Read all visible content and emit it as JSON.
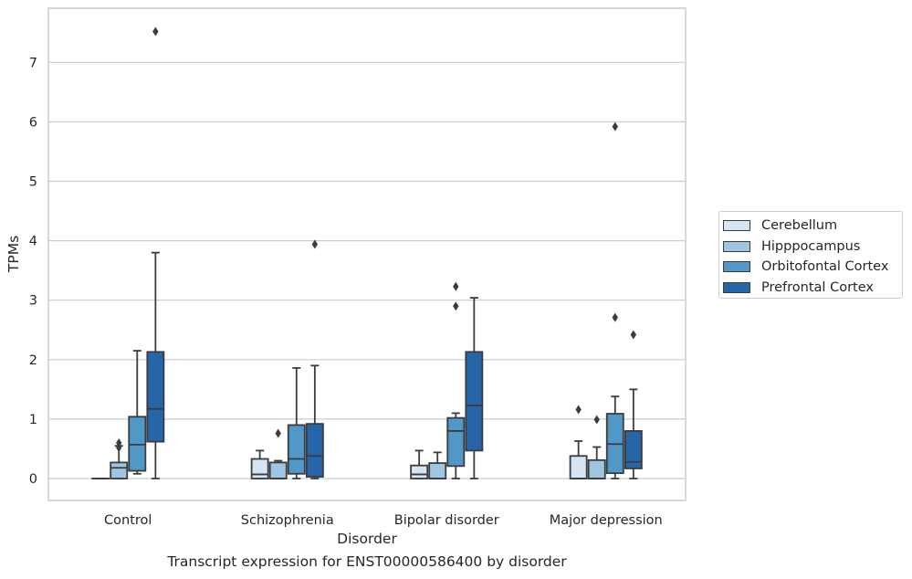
{
  "chart_data": {
    "type": "box",
    "title": "",
    "xlabel": "Disorder",
    "ylabel": "TPMs",
    "caption": "Transcript expression for ENST00000586400 by disorder",
    "categories": [
      "Control",
      "Schizophrenia",
      "Bipolar disorder",
      "Major depression"
    ],
    "ylim": [
      -0.35,
      7.9
    ],
    "yticks": [
      "0",
      "1",
      "2",
      "3",
      "4",
      "5",
      "6",
      "7"
    ],
    "grid": "y",
    "legend_position": "right",
    "series": [
      {
        "name": "Cerebellum",
        "color": "#d6e5f4",
        "boxes": [
          {
            "min": 0,
            "q1": 0,
            "median": 0,
            "q3": 0,
            "max": 0,
            "outliers": []
          },
          {
            "min": 0,
            "q1": 0,
            "median": 0.07,
            "q3": 0.33,
            "max": 0.47,
            "outliers": []
          },
          {
            "min": 0,
            "q1": 0,
            "median": 0.07,
            "q3": 0.22,
            "max": 0.47,
            "outliers": []
          },
          {
            "min": 0,
            "q1": 0,
            "median": 0,
            "q3": 0.38,
            "max": 0.63,
            "outliers": [
              1.16
            ]
          }
        ]
      },
      {
        "name": "Hipppocampus",
        "color": "#9dc7e0",
        "boxes": [
          {
            "min": 0,
            "q1": 0,
            "median": 0.18,
            "q3": 0.27,
            "max": 0.55,
            "outliers": [
              0.52,
              0.6
            ]
          },
          {
            "min": 0,
            "q1": 0,
            "median": 0,
            "q3": 0.27,
            "max": 0.3,
            "outliers": [
              0.76
            ]
          },
          {
            "min": 0,
            "q1": 0,
            "median": 0,
            "q3": 0.26,
            "max": 0.44,
            "outliers": []
          },
          {
            "min": 0,
            "q1": 0,
            "median": 0,
            "q3": 0.31,
            "max": 0.53,
            "outliers": [
              0.99
            ]
          }
        ]
      },
      {
        "name": "Orbitofontal Cortex",
        "color": "#5197c8",
        "boxes": [
          {
            "min": 0.08,
            "q1": 0.13,
            "median": 0.57,
            "q3": 1.04,
            "max": 2.15,
            "outliers": []
          },
          {
            "min": 0,
            "q1": 0.08,
            "median": 0.33,
            "q3": 0.9,
            "max": 1.86,
            "outliers": []
          },
          {
            "min": 0,
            "q1": 0.21,
            "median": 0.8,
            "q3": 1.02,
            "max": 1.1,
            "outliers": [
              2.9,
              3.23
            ]
          },
          {
            "min": 0,
            "q1": 0.09,
            "median": 0.58,
            "q3": 1.09,
            "max": 1.38,
            "outliers": [
              2.71,
              5.92
            ]
          }
        ]
      },
      {
        "name": "Prefrontal Cortex",
        "color": "#2565a8",
        "boxes": [
          {
            "min": 0,
            "q1": 0.62,
            "median": 1.17,
            "q3": 2.13,
            "max": 3.8,
            "outliers": [
              7.52
            ]
          },
          {
            "min": 0,
            "q1": 0.03,
            "median": 0.38,
            "q3": 0.92,
            "max": 1.9,
            "outliers": [
              3.94
            ]
          },
          {
            "min": 0,
            "q1": 0.47,
            "median": 1.23,
            "q3": 2.13,
            "max": 3.04,
            "outliers": []
          },
          {
            "min": 0,
            "q1": 0.17,
            "median": 0.28,
            "q3": 0.8,
            "max": 1.5,
            "outliers": [
              2.42
            ]
          }
        ]
      }
    ]
  }
}
